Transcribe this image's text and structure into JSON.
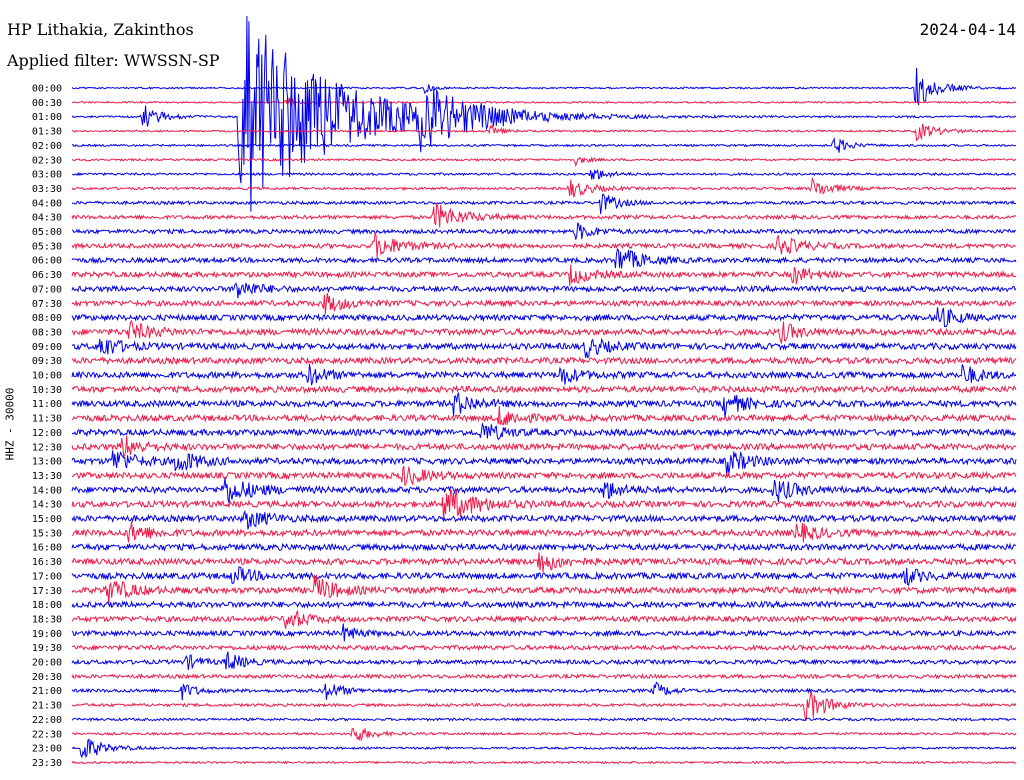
{
  "header": {
    "station": "HP Lithakia, Zakinthos",
    "date": "2024-04-14",
    "filter": "Applied filter: WWSSN-SP"
  },
  "chart_data": {
    "type": "line",
    "title": "HP Lithakia, Zakinthos",
    "subtitle": "Applied filter: WWSSN-SP",
    "date": "2024-04-14",
    "ylabel": "HHZ - 30000",
    "xlabel": "",
    "categories": [
      "00:00",
      "00:30",
      "01:00",
      "01:30",
      "02:00",
      "02:30",
      "03:00",
      "03:30",
      "04:00",
      "04:30",
      "05:00",
      "05:30",
      "06:00",
      "06:30",
      "07:00",
      "07:30",
      "08:00",
      "08:30",
      "09:00",
      "09:30",
      "10:00",
      "10:30",
      "11:00",
      "11:30",
      "12:00",
      "12:30",
      "13:00",
      "13:30",
      "14:00",
      "14:30",
      "15:00",
      "15:30",
      "16:00",
      "16:30",
      "17:00",
      "17:30",
      "18:00",
      "18:30",
      "19:00",
      "19:30",
      "20:00",
      "20:30",
      "21:00",
      "21:30",
      "22:00",
      "22:30",
      "23:00",
      "23:30"
    ],
    "x_minutes_range": [
      0,
      30
    ],
    "colors": [
      "#0000ee",
      "#ee1c4a"
    ],
    "grid": false,
    "noise_by_row": [
      0.8,
      0.8,
      0.9,
      0.9,
      1,
      1,
      1.1,
      1.2,
      1.5,
      1.8,
      2,
      2.2,
      2.4,
      2.6,
      2.6,
      2.6,
      2.8,
      3,
      3,
      3,
      3,
      3,
      3,
      3,
      3,
      3,
      3,
      3,
      3,
      3,
      3,
      3,
      3,
      3,
      3,
      3,
      2.8,
      2.6,
      2.4,
      2.2,
      2,
      1.8,
      1.6,
      1.4,
      1.2,
      1.1,
      1,
      1
    ],
    "events": [
      {
        "row": 0,
        "minute": 11.2,
        "amp": 6,
        "decay": 0.25
      },
      {
        "row": 0,
        "minute": 26.8,
        "amp": 22,
        "decay": 0.6
      },
      {
        "row": 1,
        "minute": 6.8,
        "amp": 6,
        "decay": 0.25
      },
      {
        "row": 2,
        "minute": 2.2,
        "amp": 14,
        "decay": 0.5
      },
      {
        "row": 2,
        "minute": 5.3,
        "amp": 120,
        "decay": 2.5
      },
      {
        "row": 2,
        "minute": 11,
        "amp": 25,
        "decay": 1.6
      },
      {
        "row": 3,
        "minute": 13.3,
        "amp": 6,
        "decay": 0.3
      },
      {
        "row": 3,
        "minute": 26.8,
        "amp": 10,
        "decay": 0.6
      },
      {
        "row": 4,
        "minute": 24.2,
        "amp": 10,
        "decay": 0.4
      },
      {
        "row": 5,
        "minute": 16,
        "amp": 5,
        "decay": 0.3
      },
      {
        "row": 6,
        "minute": 16.5,
        "amp": 8,
        "decay": 0.4
      },
      {
        "row": 7,
        "minute": 15.8,
        "amp": 10,
        "decay": 0.6
      },
      {
        "row": 7,
        "minute": 23.5,
        "amp": 10,
        "decay": 0.6
      },
      {
        "row": 8,
        "minute": 16.8,
        "amp": 10,
        "decay": 0.5
      },
      {
        "row": 9,
        "minute": 11.5,
        "amp": 14,
        "decay": 0.8
      },
      {
        "row": 10,
        "minute": 16,
        "amp": 9,
        "decay": 0.5
      },
      {
        "row": 11,
        "minute": 9.6,
        "amp": 12,
        "decay": 0.8
      },
      {
        "row": 11,
        "minute": 22.4,
        "amp": 10,
        "decay": 0.7
      },
      {
        "row": 12,
        "minute": 17.3,
        "amp": 14,
        "decay": 0.7
      },
      {
        "row": 13,
        "minute": 15.8,
        "amp": 10,
        "decay": 0.6
      },
      {
        "row": 13,
        "minute": 22.9,
        "amp": 9,
        "decay": 0.5
      },
      {
        "row": 14,
        "minute": 5.2,
        "amp": 10,
        "decay": 0.6
      },
      {
        "row": 15,
        "minute": 8,
        "amp": 10,
        "decay": 0.6
      },
      {
        "row": 16,
        "minute": 27.5,
        "amp": 12,
        "decay": 0.5
      },
      {
        "row": 17,
        "minute": 1.8,
        "amp": 10,
        "decay": 0.6
      },
      {
        "row": 17,
        "minute": 22.5,
        "amp": 10,
        "decay": 0.5
      },
      {
        "row": 18,
        "minute": 0.9,
        "amp": 12,
        "decay": 0.5
      },
      {
        "row": 18,
        "minute": 16.3,
        "amp": 10,
        "decay": 0.6
      },
      {
        "row": 20,
        "minute": 7.5,
        "amp": 10,
        "decay": 0.5
      },
      {
        "row": 20,
        "minute": 15.5,
        "amp": 10,
        "decay": 0.5
      },
      {
        "row": 20,
        "minute": 28.3,
        "amp": 10,
        "decay": 0.5
      },
      {
        "row": 22,
        "minute": 12.1,
        "amp": 12,
        "decay": 0.6
      },
      {
        "row": 22,
        "minute": 20.7,
        "amp": 12,
        "decay": 0.6
      },
      {
        "row": 23,
        "minute": 13.5,
        "amp": 10,
        "decay": 0.6
      },
      {
        "row": 24,
        "minute": 13,
        "amp": 10,
        "decay": 0.6
      },
      {
        "row": 25,
        "minute": 1.6,
        "amp": 12,
        "decay": 0.5
      },
      {
        "row": 26,
        "minute": 1.3,
        "amp": 12,
        "decay": 0.6
      },
      {
        "row": 26,
        "minute": 3.3,
        "amp": 12,
        "decay": 0.6
      },
      {
        "row": 26,
        "minute": 20.8,
        "amp": 12,
        "decay": 0.6
      },
      {
        "row": 27,
        "minute": 10.5,
        "amp": 10,
        "decay": 0.6
      },
      {
        "row": 28,
        "minute": 4.8,
        "amp": 14,
        "decay": 0.8
      },
      {
        "row": 28,
        "minute": 16.9,
        "amp": 10,
        "decay": 0.5
      },
      {
        "row": 28,
        "minute": 22.3,
        "amp": 12,
        "decay": 0.6
      },
      {
        "row": 29,
        "minute": 11.8,
        "amp": 18,
        "decay": 0.9
      },
      {
        "row": 30,
        "minute": 5.5,
        "amp": 10,
        "decay": 0.6
      },
      {
        "row": 31,
        "minute": 1.8,
        "amp": 10,
        "decay": 0.6
      },
      {
        "row": 31,
        "minute": 23,
        "amp": 10,
        "decay": 0.6
      },
      {
        "row": 33,
        "minute": 14.8,
        "amp": 12,
        "decay": 0.6
      },
      {
        "row": 34,
        "minute": 5.1,
        "amp": 10,
        "decay": 0.5
      },
      {
        "row": 34,
        "minute": 26.4,
        "amp": 10,
        "decay": 0.5
      },
      {
        "row": 35,
        "minute": 1.1,
        "amp": 14,
        "decay": 0.6
      },
      {
        "row": 35,
        "minute": 7.7,
        "amp": 14,
        "decay": 0.6
      },
      {
        "row": 37,
        "minute": 6.8,
        "amp": 12,
        "decay": 0.5
      },
      {
        "row": 38,
        "minute": 8.6,
        "amp": 8,
        "decay": 0.4
      },
      {
        "row": 40,
        "minute": 3.6,
        "amp": 8,
        "decay": 0.4
      },
      {
        "row": 40,
        "minute": 4.9,
        "amp": 10,
        "decay": 0.5
      },
      {
        "row": 42,
        "minute": 3.5,
        "amp": 8,
        "decay": 0.4
      },
      {
        "row": 42,
        "minute": 8.0,
        "amp": 10,
        "decay": 0.5
      },
      {
        "row": 42,
        "minute": 18.5,
        "amp": 8,
        "decay": 0.4
      },
      {
        "row": 43,
        "minute": 23.3,
        "amp": 18,
        "decay": 0.6
      },
      {
        "row": 45,
        "minute": 8.9,
        "amp": 10,
        "decay": 0.5
      },
      {
        "row": 46,
        "minute": 0.3,
        "amp": 14,
        "decay": 0.6
      }
    ]
  }
}
